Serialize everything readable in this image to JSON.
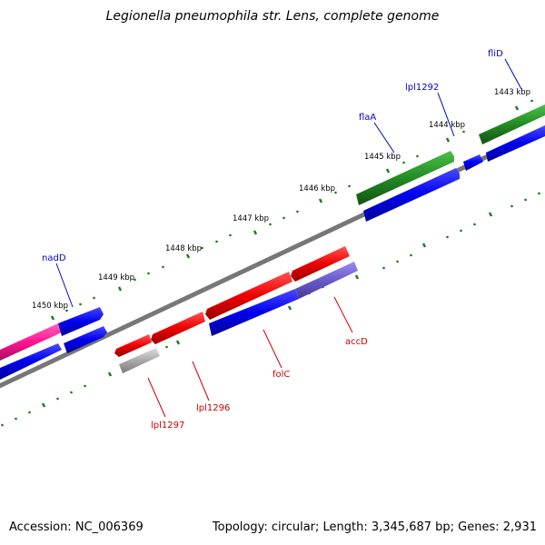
{
  "title": "Legionella pneumophila str. Lens, complete genome",
  "footer": {
    "accession": "Accession: NC_006369",
    "summary": "Topology: circular; Length: 3,345,687 bp; Genes: 2,931"
  },
  "colors": {
    "backbone": "#808080",
    "ticks": "#1f7a1f",
    "forward_gene": "#228b22",
    "cds": "#0000ee",
    "rna": "#ff1493",
    "reverse_gene": "#ee0000",
    "pseudo": "#a9a9a9",
    "overlap": "#6a5acd",
    "label_forward": "#0000cc",
    "label_reverse": "#cc0000"
  },
  "scale_labels": [
    "1450 kbp",
    "1449 kbp",
    "1448 kbp",
    "1447 kbp",
    "1446 kbp",
    "1445 kbp",
    "1444 kbp",
    "1443 kbp"
  ],
  "gene_labels_forward": [
    "nadD",
    "flaA",
    "lpl1292",
    "fliD"
  ],
  "gene_labels_reverse": [
    "lpl1297",
    "lpl1296",
    "folC",
    "accD"
  ]
}
